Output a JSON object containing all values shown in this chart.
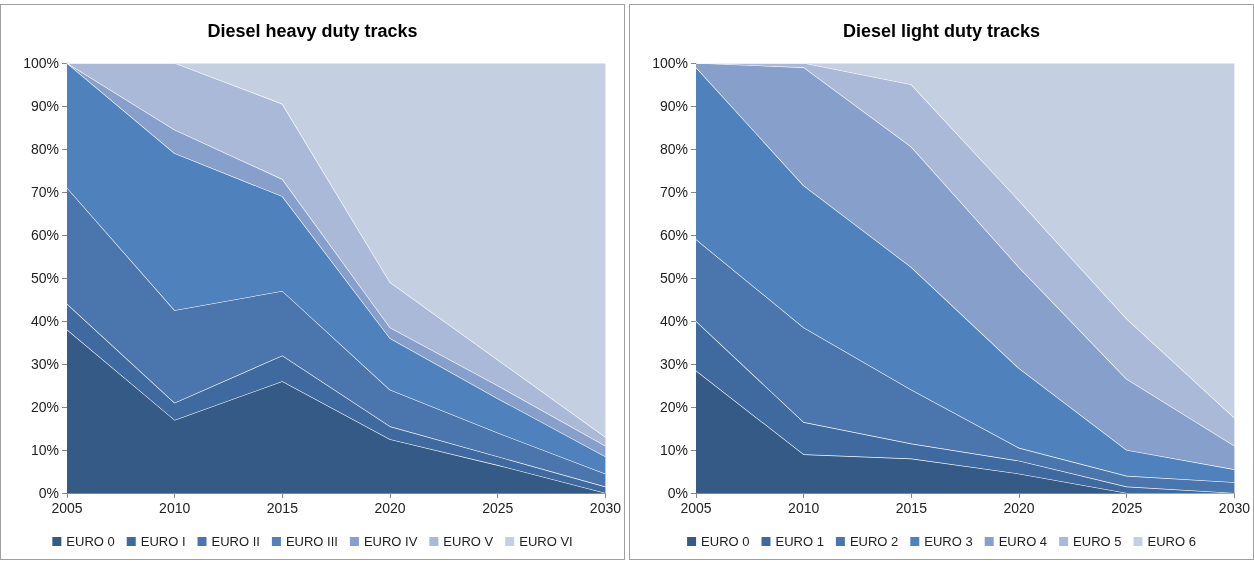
{
  "chart_data": [
    {
      "type": "area",
      "title": "Diesel heavy duty tracks",
      "stacked": true,
      "legend": "bottom",
      "grid": false,
      "x": [
        2005,
        2010,
        2015,
        2020,
        2025,
        2030
      ],
      "xlim": [
        2005,
        2030
      ],
      "xticks": [
        2005,
        2010,
        2015,
        2020,
        2025,
        2030
      ],
      "ylim": [
        0,
        100
      ],
      "yticks": [
        {
          "value": 0,
          "label": "0%"
        },
        {
          "value": 10,
          "label": "10%"
        },
        {
          "value": 20,
          "label": "20%"
        },
        {
          "value": 30,
          "label": "30%"
        },
        {
          "value": 40,
          "label": "40%"
        },
        {
          "value": 50,
          "label": "50%"
        },
        {
          "value": 60,
          "label": "60%"
        },
        {
          "value": 70,
          "label": "70%"
        },
        {
          "value": 80,
          "label": "80%"
        },
        {
          "value": 90,
          "label": "90%"
        },
        {
          "value": 100,
          "label": "100%"
        }
      ],
      "series": [
        {
          "name": "EURO 0",
          "color": "#355a86",
          "values": [
            38,
            17,
            26,
            12.5,
            6.5,
            0
          ]
        },
        {
          "name": "EURO I",
          "color": "#3f6aa0",
          "values": [
            6,
            4,
            6,
            3,
            2,
            1.5
          ]
        },
        {
          "name": "EURO II",
          "color": "#4a75ad",
          "values": [
            27,
            21.5,
            15,
            8.5,
            5.5,
            3
          ]
        },
        {
          "name": "EURO III",
          "color": "#4f81bd",
          "values": [
            29,
            36.5,
            22,
            12,
            8,
            4
          ]
        },
        {
          "name": "EURO IV",
          "color": "#86a0cb",
          "values": [
            0,
            5.5,
            4,
            2.5,
            3,
            2.5
          ]
        },
        {
          "name": "EURO V",
          "color": "#aab9d7",
          "values": [
            0,
            15.5,
            17.5,
            10.5,
            6,
            2
          ]
        },
        {
          "name": "EURO VI",
          "color": "#c5cfe2",
          "values": [
            0,
            0,
            9.5,
            51,
            69,
            87
          ]
        }
      ]
    },
    {
      "type": "area",
      "title": "Diesel light duty tracks",
      "stacked": true,
      "legend": "bottom",
      "grid": false,
      "x": [
        2005,
        2010,
        2015,
        2020,
        2025,
        2030
      ],
      "xlim": [
        2005,
        2030
      ],
      "xticks": [
        2005,
        2010,
        2015,
        2020,
        2025,
        2030
      ],
      "ylim": [
        0,
        100
      ],
      "yticks": [
        {
          "value": 0,
          "label": "0%"
        },
        {
          "value": 10,
          "label": "10%"
        },
        {
          "value": 20,
          "label": "20%"
        },
        {
          "value": 30,
          "label": "30%"
        },
        {
          "value": 40,
          "label": "40%"
        },
        {
          "value": 50,
          "label": "50%"
        },
        {
          "value": 60,
          "label": "60%"
        },
        {
          "value": 70,
          "label": "70%"
        },
        {
          "value": 80,
          "label": "80%"
        },
        {
          "value": 90,
          "label": "90%"
        },
        {
          "value": 100,
          "label": "100%"
        }
      ],
      "series": [
        {
          "name": "EURO 0",
          "color": "#355a86",
          "values": [
            28.5,
            9,
            8,
            4.5,
            0,
            0
          ]
        },
        {
          "name": "EURO 1",
          "color": "#3f6aa0",
          "values": [
            11.5,
            7.5,
            3.5,
            3,
            1.5,
            0
          ]
        },
        {
          "name": "EURO 2",
          "color": "#4a75ad",
          "values": [
            19,
            22,
            12.5,
            3,
            2.5,
            2.5
          ]
        },
        {
          "name": "EURO 3",
          "color": "#4f81bd",
          "values": [
            40,
            33,
            28.5,
            18.5,
            6,
            3
          ]
        },
        {
          "name": "EURO 4",
          "color": "#86a0cb",
          "values": [
            1,
            27.5,
            28,
            23.5,
            16.5,
            5.5
          ]
        },
        {
          "name": "EURO 5",
          "color": "#aab9d7",
          "values": [
            0,
            1,
            14.5,
            15.5,
            14,
            6.5
          ]
        },
        {
          "name": "EURO 6",
          "color": "#c5cfe2",
          "values": [
            0,
            0,
            5,
            32,
            59.5,
            82.5
          ]
        }
      ]
    }
  ]
}
